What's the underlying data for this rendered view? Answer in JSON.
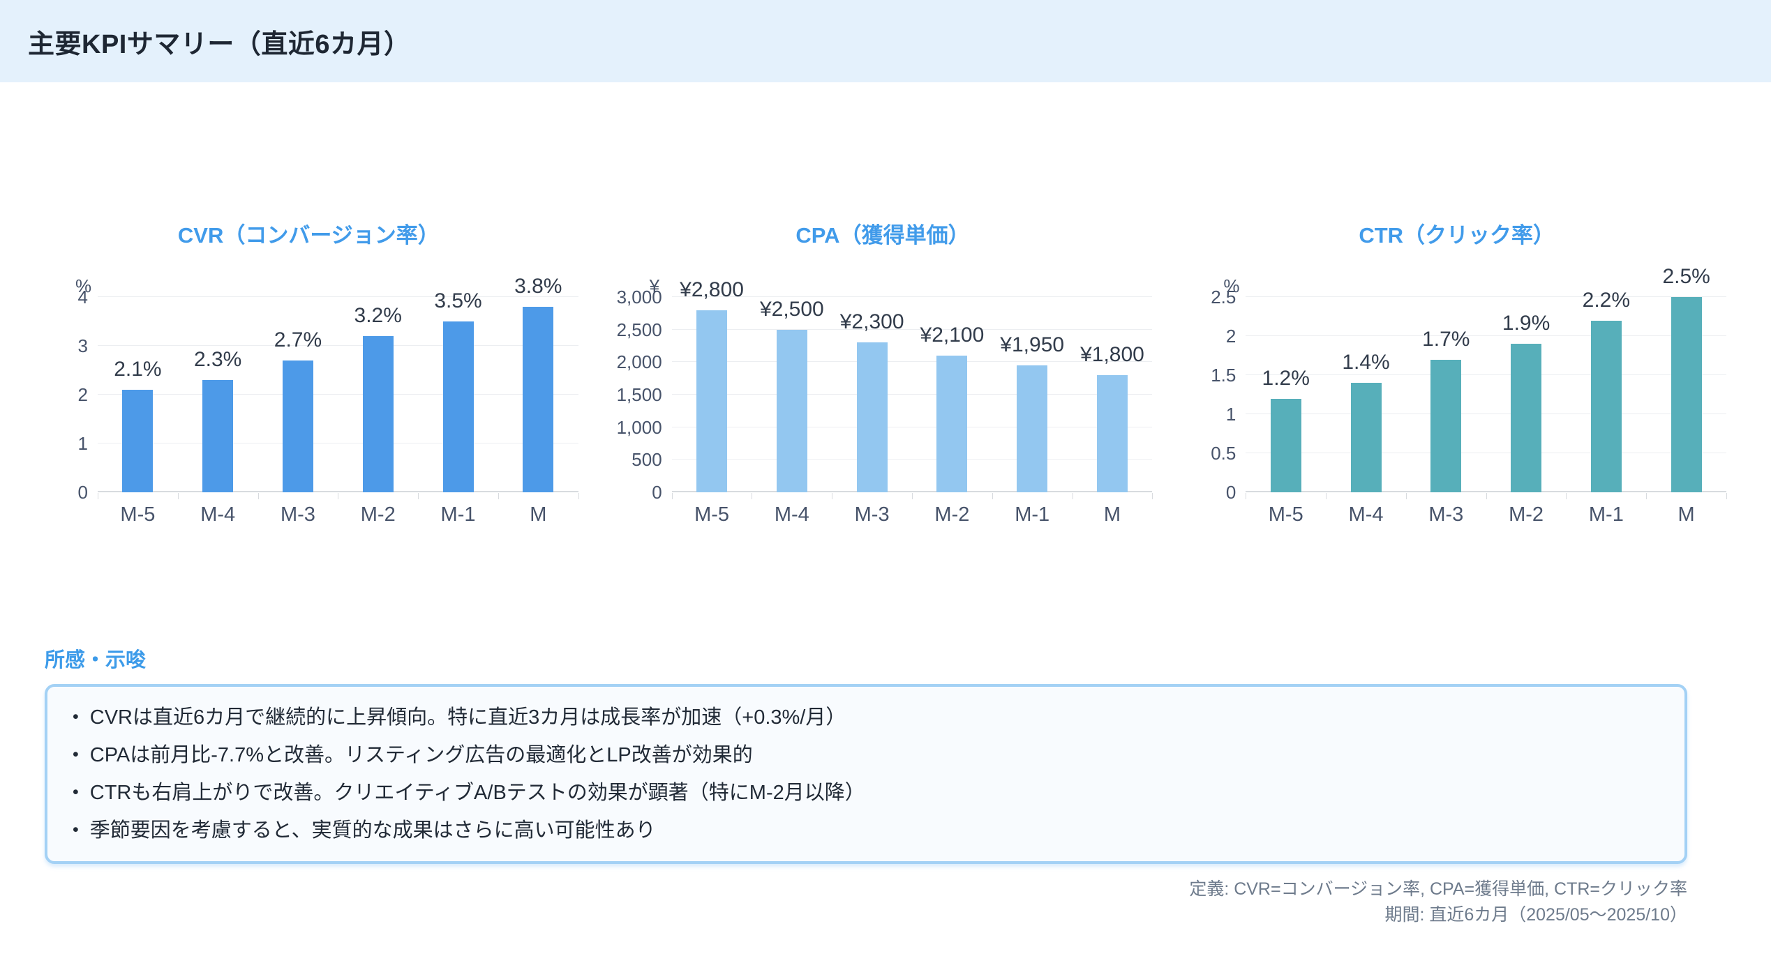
{
  "header": {
    "title": "主要KPIサマリー（直近6カ月）"
  },
  "chart_data": [
    {
      "id": "cvr",
      "type": "bar",
      "title": "CVR（コンバージョン率）",
      "unit": "%",
      "categories": [
        "M-5",
        "M-4",
        "M-3",
        "M-2",
        "M-1",
        "M"
      ],
      "values": [
        2.1,
        2.3,
        2.7,
        3.2,
        3.5,
        3.8
      ],
      "labels": [
        "2.1%",
        "2.3%",
        "2.7%",
        "3.2%",
        "3.5%",
        "3.8%"
      ],
      "ylim": [
        0,
        4
      ],
      "yticks": [
        0,
        1,
        2,
        3,
        4
      ],
      "ytick_labels": [
        "0",
        "1",
        "2",
        "3",
        "4"
      ],
      "bar_color": "#4D9AE8",
      "grid": true,
      "legend": false
    },
    {
      "id": "cpa",
      "type": "bar",
      "title": "CPA（獲得単価）",
      "unit": "¥",
      "categories": [
        "M-5",
        "M-4",
        "M-3",
        "M-2",
        "M-1",
        "M"
      ],
      "values": [
        2800,
        2500,
        2300,
        2100,
        1950,
        1800
      ],
      "labels": [
        "¥2,800",
        "¥2,500",
        "¥2,300",
        "¥2,100",
        "¥1,950",
        "¥1,800"
      ],
      "ylim": [
        0,
        3000
      ],
      "yticks": [
        0,
        500,
        1000,
        1500,
        2000,
        2500,
        3000
      ],
      "ytick_labels": [
        "0",
        "500",
        "1,000",
        "1,500",
        "2,000",
        "2,500",
        "3,000"
      ],
      "bar_color": "#93C7F0",
      "grid": true,
      "legend": false
    },
    {
      "id": "ctr",
      "type": "bar",
      "title": "CTR（クリック率）",
      "unit": "%",
      "categories": [
        "M-5",
        "M-4",
        "M-3",
        "M-2",
        "M-1",
        "M"
      ],
      "values": [
        1.2,
        1.4,
        1.7,
        1.9,
        2.2,
        2.5
      ],
      "labels": [
        "1.2%",
        "1.4%",
        "1.7%",
        "1.9%",
        "2.2%",
        "2.5%"
      ],
      "ylim": [
        0,
        2.5
      ],
      "yticks": [
        0,
        0.5,
        1,
        1.5,
        2,
        2.5
      ],
      "ytick_labels": [
        "0",
        "0.5",
        "1",
        "1.5",
        "2",
        "2.5"
      ],
      "bar_color": "#57AFBA",
      "grid": true,
      "legend": false
    }
  ],
  "notes": {
    "heading": "所感・示唆",
    "bullets": [
      "CVRは直近6カ月で継続的に上昇傾向。特に直近3カ月は成長率が加速（+0.3%/月）",
      "CPAは前月比-7.7%と改善。リスティング広告の最適化とLP改善が効果的",
      "CTRも右肩上がりで改善。クリエイティブA/Bテストの効果が顕著（特にM-2月以降）",
      "季節要因を考慮すると、実質的な成果はさらに高い可能性あり"
    ]
  },
  "footer": {
    "definitions": "定義: CVR=コンバージョン率, CPA=獲得単価, CTR=クリック率",
    "period": "期間: 直近6カ月（2025/05〜2025/10）"
  },
  "colors": {
    "header_bg": "#E4F1FC",
    "accent_blue": "#419BEA",
    "cvr_bar": "#4D9AE8",
    "cpa_bar": "#93C7F0",
    "ctr_bar": "#57AFBA",
    "notes_box_border": "#A3D1F5",
    "grid_line": "#ECEEF1",
    "axis_text": "#47536A",
    "footer_text": "#6E7B8C"
  }
}
